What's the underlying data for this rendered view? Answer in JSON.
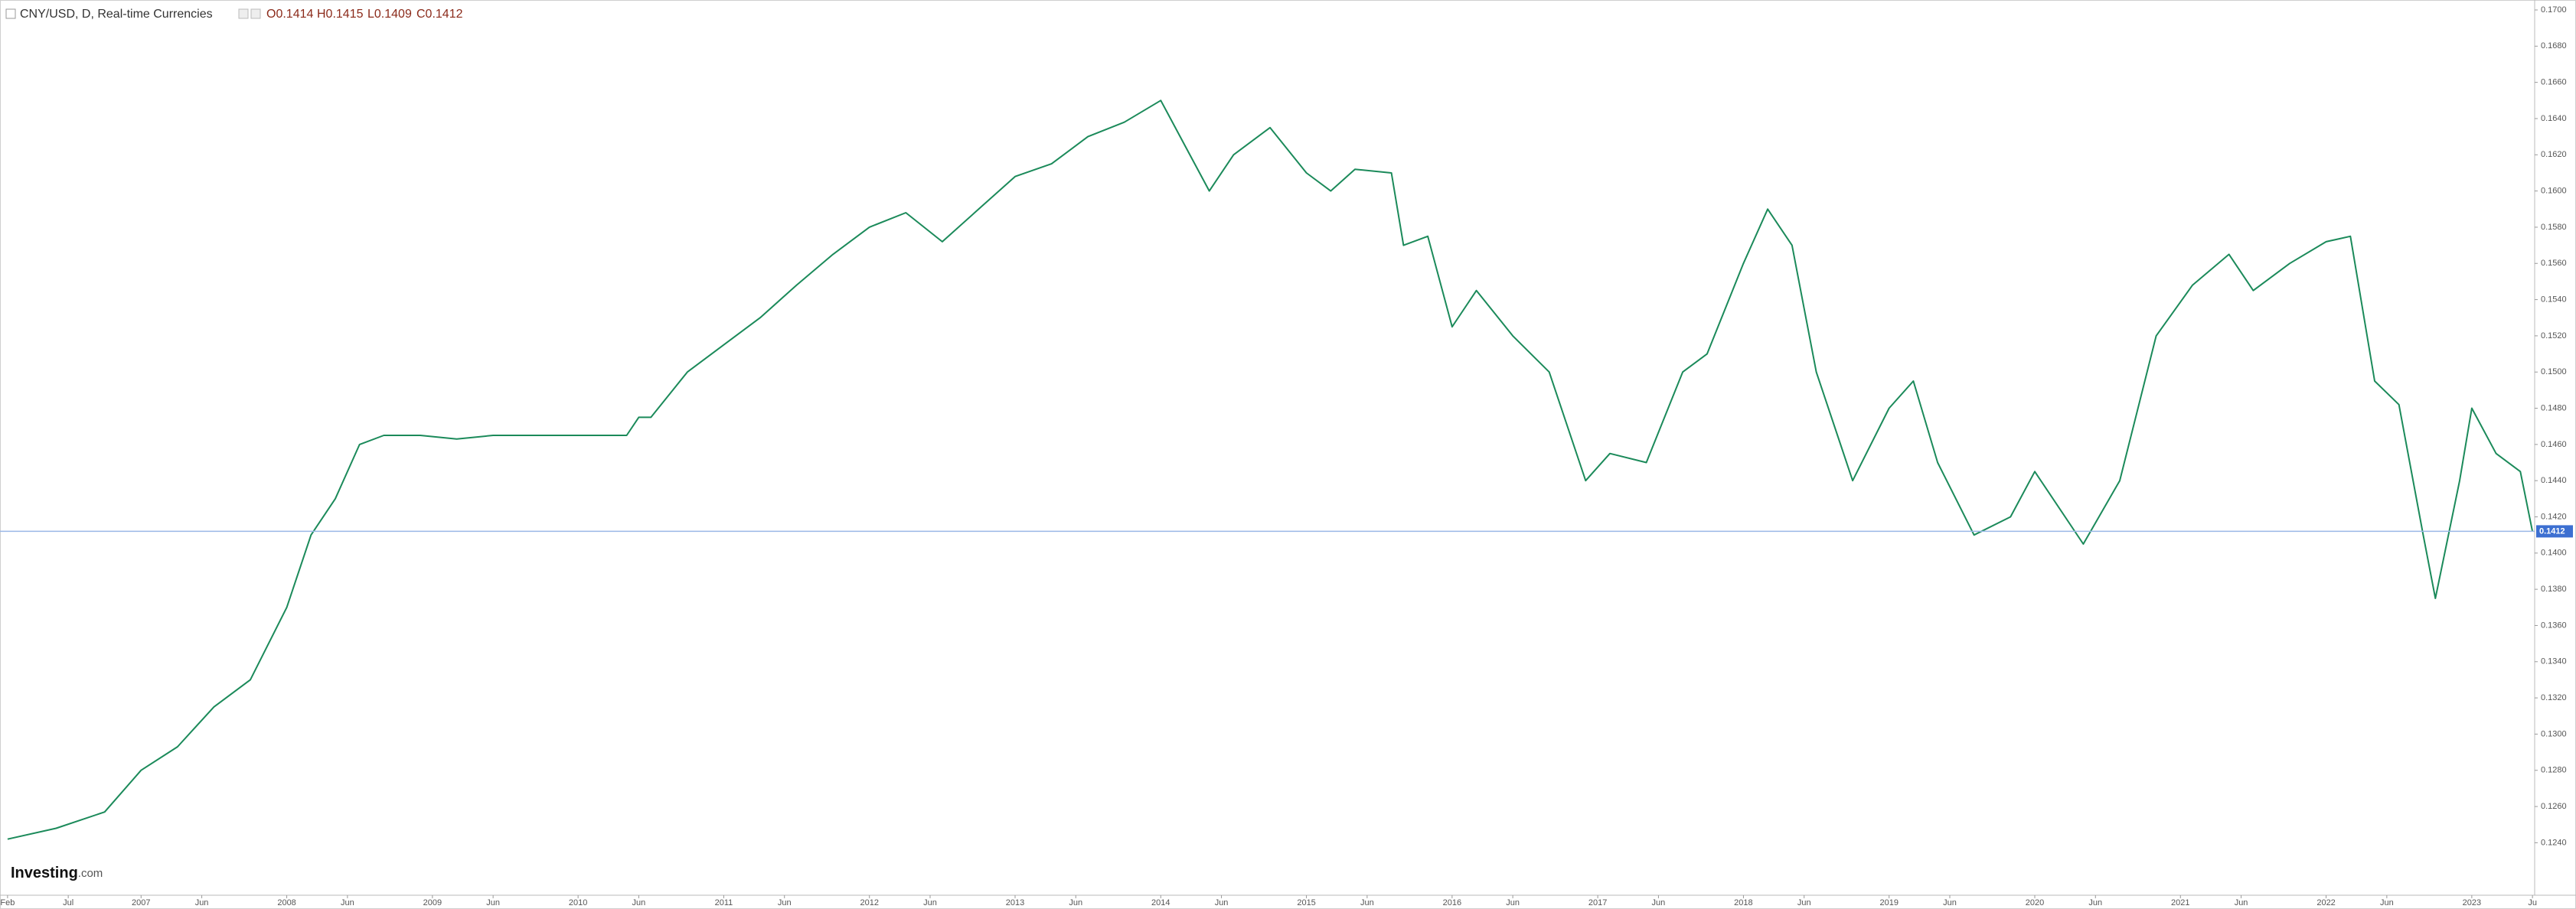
{
  "chart_data": {
    "type": "line",
    "title": "CNY/USD, D, Real-time Currencies",
    "ohlc": [
      "O0.1414",
      "H0.1415",
      "L0.1409",
      "C0.1412"
    ],
    "logo": [
      "Investing",
      ".com"
    ],
    "last_value": 0.1412,
    "color": "#1b8a5a",
    "last_color": "#3c6fd1",
    "grid": false,
    "xlim": [
      "2006-01",
      "2023-07"
    ],
    "ylim": [
      0.1211,
      0.17055
    ],
    "xticks": [
      {
        "value": "2006-02",
        "label": "Feb"
      },
      {
        "value": "2006-07",
        "label": "Jul"
      },
      {
        "value": "2007-01",
        "label": "2007"
      },
      {
        "value": "2007-06",
        "label": "Jun"
      },
      {
        "value": "2008-01",
        "label": "2008"
      },
      {
        "value": "2008-06",
        "label": "Jun"
      },
      {
        "value": "2009-01",
        "label": "2009"
      },
      {
        "value": "2009-06",
        "label": "Jun"
      },
      {
        "value": "2010-01",
        "label": "2010"
      },
      {
        "value": "2010-06",
        "label": "Jun"
      },
      {
        "value": "2011-01",
        "label": "2011"
      },
      {
        "value": "2011-06",
        "label": "Jun"
      },
      {
        "value": "2012-01",
        "label": "2012"
      },
      {
        "value": "2012-06",
        "label": "Jun"
      },
      {
        "value": "2013-01",
        "label": "2013"
      },
      {
        "value": "2013-06",
        "label": "Jun"
      },
      {
        "value": "2014-01",
        "label": "2014"
      },
      {
        "value": "2014-06",
        "label": "Jun"
      },
      {
        "value": "2015-01",
        "label": "2015"
      },
      {
        "value": "2015-06",
        "label": "Jun"
      },
      {
        "value": "2016-01",
        "label": "2016"
      },
      {
        "value": "2016-06",
        "label": "Jun"
      },
      {
        "value": "2017-01",
        "label": "2017"
      },
      {
        "value": "2017-06",
        "label": "Jun"
      },
      {
        "value": "2018-01",
        "label": "2018"
      },
      {
        "value": "2018-06",
        "label": "Jun"
      },
      {
        "value": "2019-01",
        "label": "2019"
      },
      {
        "value": "2019-06",
        "label": "Jun"
      },
      {
        "value": "2020-01",
        "label": "2020"
      },
      {
        "value": "2020-06",
        "label": "Jun"
      },
      {
        "value": "2021-01",
        "label": "2021"
      },
      {
        "value": "2021-06",
        "label": "Jun"
      },
      {
        "value": "2022-01",
        "label": "2022"
      },
      {
        "value": "2022-06",
        "label": "Jun"
      },
      {
        "value": "2023-01",
        "label": "2023"
      },
      {
        "value": "2023-06",
        "label": "Ju"
      }
    ],
    "yticks": [
      {
        "value": 0.17,
        "label": "0.1700"
      },
      {
        "value": 0.168,
        "label": "0.1680"
      },
      {
        "value": 0.166,
        "label": "0.1660"
      },
      {
        "value": 0.164,
        "label": "0.1640"
      },
      {
        "value": 0.162,
        "label": "0.1620"
      },
      {
        "value": 0.16,
        "label": "0.1600"
      },
      {
        "value": 0.158,
        "label": "0.1580"
      },
      {
        "value": 0.156,
        "label": "0.1560"
      },
      {
        "value": 0.154,
        "label": "0.1540"
      },
      {
        "value": 0.152,
        "label": "0.1520"
      },
      {
        "value": 0.15,
        "label": "0.1500"
      },
      {
        "value": 0.148,
        "label": "0.1480"
      },
      {
        "value": 0.146,
        "label": "0.1460"
      },
      {
        "value": 0.144,
        "label": "0.1440"
      },
      {
        "value": 0.142,
        "label": "0.1420"
      },
      {
        "value": 0.14,
        "label": "0.1400"
      },
      {
        "value": 0.138,
        "label": "0.1380"
      },
      {
        "value": 0.136,
        "label": "0.1360"
      },
      {
        "value": 0.134,
        "label": "0.1340"
      },
      {
        "value": 0.132,
        "label": "0.1320"
      },
      {
        "value": 0.13,
        "label": "0.1300"
      },
      {
        "value": 0.128,
        "label": "0.1280"
      },
      {
        "value": 0.126,
        "label": "0.1260"
      },
      {
        "value": 0.124,
        "label": "0.1240"
      }
    ],
    "x": [
      "2006-02",
      "2006-06",
      "2006-10",
      "2007-01",
      "2007-04",
      "2007-07",
      "2007-10",
      "2008-01",
      "2008-03",
      "2008-05",
      "2008-07",
      "2008-09",
      "2008-12",
      "2009-03",
      "2009-06",
      "2009-09",
      "2010-01",
      "2010-05",
      "2010-06",
      "2010-07",
      "2010-10",
      "2011-01",
      "2011-04",
      "2011-07",
      "2011-10",
      "2012-01",
      "2012-04",
      "2012-07",
      "2012-10",
      "2013-01",
      "2013-04",
      "2013-07",
      "2013-10",
      "2014-01",
      "2014-03",
      "2014-05",
      "2014-07",
      "2014-10",
      "2015-01",
      "2015-03",
      "2015-05",
      "2015-08",
      "2015-09",
      "2015-11",
      "2016-01",
      "2016-03",
      "2016-06",
      "2016-09",
      "2016-12",
      "2017-02",
      "2017-05",
      "2017-08",
      "2017-10",
      "2018-01",
      "2018-03",
      "2018-05",
      "2018-07",
      "2018-10",
      "2019-01",
      "2019-03",
      "2019-05",
      "2019-08",
      "2019-11",
      "2020-01",
      "2020-05",
      "2020-08",
      "2020-11",
      "2021-02",
      "2021-05",
      "2021-07",
      "2021-10",
      "2022-01",
      "2022-03",
      "2022-05",
      "2022-07",
      "2022-09",
      "2022-10",
      "2022-12",
      "2023-01",
      "2023-03",
      "2023-05",
      "2023-06"
    ],
    "values": [
      0.1242,
      0.1248,
      0.1257,
      0.128,
      0.1293,
      0.1315,
      0.133,
      0.137,
      0.141,
      0.143,
      0.146,
      0.1465,
      0.1465,
      0.1463,
      0.1465,
      0.1465,
      0.1465,
      0.1465,
      0.1475,
      0.1475,
      0.15,
      0.1515,
      0.153,
      0.1548,
      0.1565,
      0.158,
      0.1588,
      0.1572,
      0.159,
      0.1608,
      0.1615,
      0.163,
      0.1638,
      0.165,
      0.1625,
      0.16,
      0.162,
      0.1635,
      0.161,
      0.16,
      0.1612,
      0.161,
      0.157,
      0.1575,
      0.1525,
      0.1545,
      0.152,
      0.15,
      0.144,
      0.1455,
      0.145,
      0.15,
      0.151,
      0.156,
      0.159,
      0.157,
      0.15,
      0.144,
      0.148,
      0.1495,
      0.145,
      0.141,
      0.142,
      0.1445,
      0.1405,
      0.144,
      0.152,
      0.1548,
      0.1565,
      0.1545,
      0.156,
      0.1572,
      0.1575,
      0.1495,
      0.1482,
      0.141,
      0.1375,
      0.144,
      0.148,
      0.1455,
      0.1445,
      0.1412
    ]
  }
}
